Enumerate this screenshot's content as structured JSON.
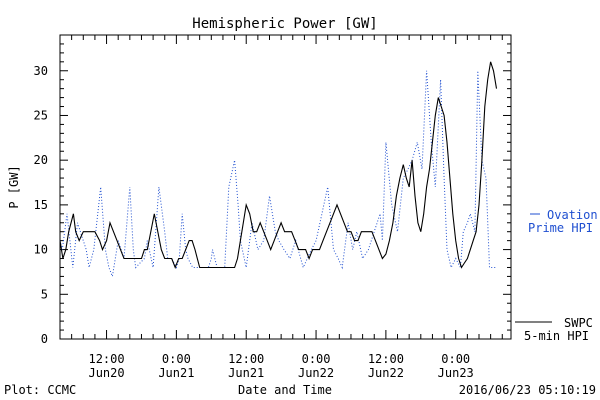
{
  "chart_data": {
    "type": "line",
    "title": "Hemispheric Power [GW]",
    "ylabel": "P [GW]",
    "xlabel": "Date and Time",
    "ylim": [
      0,
      34
    ],
    "yticks": [
      0,
      5,
      10,
      15,
      20,
      25,
      30
    ],
    "x_unit": "hours since 2016-06-19 04:00 UTC",
    "xlim": [
      0,
      77.5
    ],
    "xticks": [
      {
        "x": 8,
        "line1": "12:00",
        "line2": "Jun20"
      },
      {
        "x": 20,
        "line1": "0:00",
        "line2": "Jun21"
      },
      {
        "x": 32,
        "line1": "12:00",
        "line2": "Jun21"
      },
      {
        "x": 44,
        "line1": "0:00",
        "line2": "Jun22"
      },
      {
        "x": 56,
        "line1": "12:00",
        "line2": "Jun22"
      },
      {
        "x": 68,
        "line1": "0:00",
        "line2": "Jun23"
      }
    ],
    "grid": false,
    "series": [
      {
        "name": "SWPC 5-min HPI",
        "legend_lines": [
          "SWPC",
          "5-min HPI"
        ],
        "color": "#000000",
        "style": "solid",
        "points": [
          [
            0,
            11
          ],
          [
            0.5,
            9
          ],
          [
            1,
            10
          ],
          [
            1.5,
            12
          ],
          [
            2.3,
            14
          ],
          [
            2.7,
            12
          ],
          [
            3.3,
            11
          ],
          [
            4,
            12
          ],
          [
            5,
            12
          ],
          [
            6,
            12
          ],
          [
            6.8,
            11
          ],
          [
            7.3,
            10
          ],
          [
            8,
            11
          ],
          [
            8.6,
            13
          ],
          [
            9.2,
            12
          ],
          [
            9.8,
            11
          ],
          [
            10.4,
            10
          ],
          [
            11,
            9
          ],
          [
            12,
            9
          ],
          [
            13,
            9
          ],
          [
            14,
            9
          ],
          [
            14.5,
            10
          ],
          [
            15,
            10
          ],
          [
            15.6,
            12
          ],
          [
            16.2,
            14
          ],
          [
            16.8,
            12
          ],
          [
            17.4,
            10
          ],
          [
            18,
            9
          ],
          [
            18.6,
            9
          ],
          [
            19.2,
            9
          ],
          [
            19.8,
            8
          ],
          [
            20.4,
            9
          ],
          [
            21,
            9
          ],
          [
            21.6,
            10
          ],
          [
            22.2,
            11
          ],
          [
            22.7,
            11
          ],
          [
            23.2,
            10
          ],
          [
            23.6,
            9
          ],
          [
            24,
            8
          ],
          [
            27,
            8
          ],
          [
            29,
            8
          ],
          [
            30,
            8
          ],
          [
            30.5,
            9
          ],
          [
            31,
            11
          ],
          [
            31.5,
            13
          ],
          [
            32,
            15
          ],
          [
            32.6,
            14
          ],
          [
            33.2,
            12
          ],
          [
            33.8,
            12
          ],
          [
            34.4,
            13
          ],
          [
            35,
            12
          ],
          [
            35.6,
            11
          ],
          [
            36.2,
            10
          ],
          [
            36.8,
            11
          ],
          [
            37.4,
            12
          ],
          [
            38,
            13
          ],
          [
            38.6,
            12
          ],
          [
            39.2,
            12
          ],
          [
            39.8,
            12
          ],
          [
            40.4,
            11
          ],
          [
            41,
            10
          ],
          [
            41.6,
            10
          ],
          [
            42.2,
            10
          ],
          [
            42.8,
            9
          ],
          [
            43.4,
            10
          ],
          [
            44,
            10
          ],
          [
            44.6,
            10
          ],
          [
            45.2,
            11
          ],
          [
            45.8,
            12
          ],
          [
            46.4,
            13
          ],
          [
            47,
            14
          ],
          [
            47.6,
            15
          ],
          [
            48.2,
            14
          ],
          [
            48.8,
            13
          ],
          [
            49.4,
            12
          ],
          [
            50,
            12
          ],
          [
            50.6,
            11
          ],
          [
            51.2,
            11
          ],
          [
            51.8,
            12
          ],
          [
            52.4,
            12
          ],
          [
            53,
            12
          ],
          [
            53.6,
            12
          ],
          [
            54.2,
            11
          ],
          [
            54.8,
            10
          ],
          [
            55.4,
            9
          ],
          [
            56,
            9.5
          ],
          [
            56.6,
            11
          ],
          [
            57.2,
            13
          ],
          [
            57.8,
            16
          ],
          [
            58.4,
            18
          ],
          [
            59,
            19.5
          ],
          [
            59.5,
            18
          ],
          [
            60,
            17
          ],
          [
            60.5,
            20
          ],
          [
            61,
            16
          ],
          [
            61.5,
            13
          ],
          [
            62,
            12
          ],
          [
            62.5,
            14
          ],
          [
            63,
            17
          ],
          [
            63.5,
            19
          ],
          [
            64,
            22
          ],
          [
            64.5,
            25
          ],
          [
            65,
            27
          ],
          [
            65.5,
            26
          ],
          [
            66,
            25
          ],
          [
            66.5,
            22
          ],
          [
            67,
            18
          ],
          [
            67.5,
            14
          ],
          [
            68,
            11
          ],
          [
            68.5,
            9
          ],
          [
            69,
            8
          ],
          [
            69.5,
            8.5
          ],
          [
            70,
            9
          ],
          [
            70.5,
            10
          ],
          [
            71,
            11
          ],
          [
            71.5,
            12
          ],
          [
            72,
            15
          ],
          [
            72.5,
            20
          ],
          [
            73,
            26
          ],
          [
            73.5,
            29
          ],
          [
            74,
            31
          ],
          [
            74.5,
            30
          ],
          [
            75,
            28
          ]
        ]
      },
      {
        "name": "Ovation Prime HPI",
        "legend_lines": [
          "Ovation",
          "Prime HPI"
        ],
        "color": "#1f4fd0",
        "style": "dotted",
        "points": [
          [
            0,
            11
          ],
          [
            0.4,
            10
          ],
          [
            1.2,
            14
          ],
          [
            2.2,
            8
          ],
          [
            3,
            13
          ],
          [
            4.5,
            10
          ],
          [
            5,
            8
          ],
          [
            5.8,
            10
          ],
          [
            7,
            17
          ],
          [
            7.8,
            10
          ],
          [
            8.4,
            8
          ],
          [
            9,
            7
          ],
          [
            10,
            11
          ],
          [
            11,
            9
          ],
          [
            12,
            17
          ],
          [
            12.6,
            10
          ],
          [
            13,
            8
          ],
          [
            14.5,
            9
          ],
          [
            15,
            11
          ],
          [
            16,
            8
          ],
          [
            17,
            17
          ],
          [
            18,
            12
          ],
          [
            18.5,
            9
          ],
          [
            19.2,
            9
          ],
          [
            20,
            8
          ],
          [
            20.5,
            9
          ],
          [
            21,
            14
          ],
          [
            21.6,
            10
          ],
          [
            22,
            9
          ],
          [
            22.8,
            8
          ],
          [
            25.5,
            8
          ],
          [
            26,
            9
          ],
          [
            26.2,
            10
          ],
          [
            27,
            8
          ],
          [
            28.3,
            8
          ],
          [
            29,
            17
          ],
          [
            30,
            20
          ],
          [
            30.6,
            15
          ],
          [
            31,
            11
          ],
          [
            32,
            8
          ],
          [
            33,
            13
          ],
          [
            34,
            10
          ],
          [
            35,
            11
          ],
          [
            36,
            16
          ],
          [
            37,
            12
          ],
          [
            37.6,
            11
          ],
          [
            38.5,
            10
          ],
          [
            39.5,
            9
          ],
          [
            40.5,
            11
          ],
          [
            41.8,
            8
          ],
          [
            42.5,
            9
          ],
          [
            43.2,
            10
          ],
          [
            44,
            11
          ],
          [
            45,
            14
          ],
          [
            46,
            17
          ],
          [
            47,
            10
          ],
          [
            47.8,
            9
          ],
          [
            48.5,
            8
          ],
          [
            49.5,
            13
          ],
          [
            50.3,
            10
          ],
          [
            51,
            12
          ],
          [
            52,
            9
          ],
          [
            53,
            10
          ],
          [
            54,
            12
          ],
          [
            55,
            14
          ],
          [
            55.4,
            11
          ],
          [
            56,
            22
          ],
          [
            57,
            15
          ],
          [
            58,
            12
          ],
          [
            59,
            18
          ],
          [
            59.8,
            19
          ],
          [
            60.5,
            20
          ],
          [
            61.4,
            22
          ],
          [
            62.2,
            19
          ],
          [
            63,
            30
          ],
          [
            63.8,
            22
          ],
          [
            64.5,
            17
          ],
          [
            65.4,
            29
          ],
          [
            66,
            18
          ],
          [
            66.5,
            10
          ],
          [
            67.2,
            8
          ],
          [
            68,
            9
          ],
          [
            68.8,
            8
          ],
          [
            69.3,
            12
          ],
          [
            70,
            13
          ],
          [
            70.5,
            14
          ],
          [
            71.3,
            12
          ],
          [
            71.8,
            30
          ],
          [
            72.5,
            20
          ],
          [
            73.2,
            18
          ],
          [
            73.8,
            8
          ],
          [
            75,
            8
          ]
        ]
      }
    ]
  },
  "footer": {
    "left": "Plot: CCMC",
    "right": "2016/06/23 05:10:19"
  }
}
